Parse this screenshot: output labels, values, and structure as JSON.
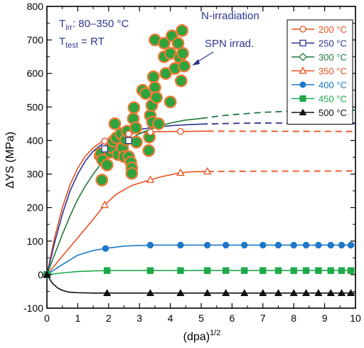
{
  "chart_data": {
    "type": "scatter",
    "xlabel": "(dpa)",
    "xlabel_superscript": "1/2",
    "ylabel": "ΔYS (MPa)",
    "xlim": [
      0,
      10
    ],
    "ylim": [
      -100,
      800
    ],
    "xticks": [
      0,
      1,
      2,
      3,
      4,
      5,
      6,
      7,
      8,
      9,
      10
    ],
    "yticks": [
      -100,
      0,
      100,
      200,
      300,
      400,
      500,
      600,
      700,
      800
    ],
    "grid": false,
    "legend_position": "top-right",
    "annotations": {
      "tirr_prefix": "T",
      "tirr_sub": "irr",
      "tirr_value": ": 80–350 °C",
      "ttest_prefix": "T",
      "ttest_sub": "test",
      "ttest_value": " = RT",
      "n_irradiation": "N-irradiation",
      "spn_label": "SPN irrad."
    },
    "series": [
      {
        "name": "200 °C",
        "color": "#e8501e",
        "marker": "circle-open",
        "points": [
          [
            0,
            0
          ],
          [
            1.87,
            398
          ],
          [
            2.65,
            420
          ],
          [
            3.35,
            425
          ],
          [
            4.33,
            427
          ]
        ],
        "fit": [
          [
            0,
            0
          ],
          [
            0.25,
            110
          ],
          [
            0.5,
            200
          ],
          [
            0.75,
            268
          ],
          [
            1,
            318
          ],
          [
            1.25,
            354
          ],
          [
            1.5,
            378
          ],
          [
            1.75,
            395
          ],
          [
            2,
            405
          ],
          [
            2.25,
            412
          ],
          [
            2.5,
            417
          ],
          [
            2.75,
            420
          ],
          [
            3,
            423
          ],
          [
            3.5,
            426
          ],
          [
            4,
            427
          ],
          [
            4.5,
            427
          ],
          [
            5.2,
            428
          ]
        ],
        "dashed": [
          [
            5.2,
            428
          ],
          [
            10,
            427
          ]
        ]
      },
      {
        "name": "250 °C",
        "color": "#2b3590",
        "marker": "square-open",
        "points": [
          [
            0,
            0
          ],
          [
            1.87,
            375
          ],
          [
            2.65,
            400
          ]
        ],
        "fit": [
          [
            0,
            0
          ],
          [
            0.25,
            95
          ],
          [
            0.5,
            180
          ],
          [
            0.75,
            250
          ],
          [
            1,
            300
          ],
          [
            1.25,
            340
          ],
          [
            1.5,
            368
          ],
          [
            1.75,
            387
          ],
          [
            2,
            402
          ],
          [
            2.25,
            413
          ],
          [
            2.5,
            421
          ],
          [
            2.75,
            428
          ],
          [
            3,
            433
          ],
          [
            3.5,
            440
          ],
          [
            4,
            444
          ],
          [
            4.5,
            447
          ],
          [
            5,
            449
          ]
        ],
        "dashed": [
          [
            5,
            449
          ],
          [
            6,
            451
          ],
          [
            7,
            452
          ],
          [
            8,
            452
          ],
          [
            10,
            452
          ]
        ]
      },
      {
        "name": "300 °C",
        "color": "#1f7a3a",
        "marker": "diamond-open",
        "points": [
          [
            0,
            0
          ]
        ],
        "fit": [
          [
            0,
            0
          ],
          [
            0.25,
            60
          ],
          [
            0.5,
            120
          ],
          [
            0.75,
            175
          ],
          [
            1,
            225
          ],
          [
            1.25,
            265
          ],
          [
            1.5,
            300
          ],
          [
            1.75,
            330
          ],
          [
            2,
            355
          ],
          [
            2.25,
            375
          ],
          [
            2.5,
            393
          ],
          [
            2.75,
            408
          ],
          [
            3,
            420
          ],
          [
            3.25,
            430
          ],
          [
            3.5,
            438
          ],
          [
            3.75,
            446
          ],
          [
            4,
            452
          ],
          [
            4.5,
            461
          ],
          [
            5,
            466
          ]
        ],
        "dashed": [
          [
            5,
            466
          ],
          [
            5.5,
            472
          ],
          [
            6,
            477
          ],
          [
            7,
            484
          ],
          [
            8,
            488
          ],
          [
            9,
            490
          ],
          [
            10,
            491
          ]
        ]
      },
      {
        "name": "350 °C",
        "color": "#e8501e",
        "marker": "triangle-open",
        "points": [
          [
            0,
            0
          ],
          [
            1.87,
            208
          ],
          [
            3.35,
            283
          ],
          [
            4.33,
            304
          ],
          [
            5.2,
            308
          ]
        ],
        "fit": [
          [
            0,
            0
          ],
          [
            0.5,
            55
          ],
          [
            1,
            110
          ],
          [
            1.5,
            165
          ],
          [
            1.87,
            208
          ],
          [
            2.25,
            240
          ],
          [
            2.75,
            266
          ],
          [
            3.35,
            283
          ],
          [
            3.75,
            293
          ],
          [
            4.33,
            304
          ],
          [
            4.75,
            307
          ],
          [
            5.2,
            308
          ]
        ],
        "dashed": [
          [
            5.2,
            308
          ],
          [
            10,
            309
          ]
        ]
      },
      {
        "name": "400 °C",
        "color": "#1f78c8",
        "marker": "circle-filled",
        "points": [
          [
            0,
            0
          ],
          [
            1.9,
            78
          ],
          [
            3.35,
            88
          ],
          [
            4.33,
            88
          ],
          [
            5.2,
            88
          ],
          [
            5.8,
            88
          ],
          [
            6.4,
            88
          ],
          [
            7,
            88
          ],
          [
            7.5,
            88
          ],
          [
            8,
            88
          ],
          [
            8.4,
            88
          ],
          [
            8.8,
            88
          ],
          [
            9.2,
            88
          ],
          [
            9.55,
            88
          ],
          [
            9.85,
            88
          ]
        ],
        "fit": [
          [
            0,
            0
          ],
          [
            0.5,
            30
          ],
          [
            1,
            58
          ],
          [
            1.5,
            72
          ],
          [
            1.9,
            78
          ],
          [
            2.5,
            85
          ],
          [
            3,
            87
          ],
          [
            3.5,
            88
          ],
          [
            10,
            88
          ]
        ]
      },
      {
        "name": "450 °C",
        "color": "#1fa84a",
        "marker": "square-filled",
        "points": [
          [
            0,
            0
          ],
          [
            1.95,
            12
          ],
          [
            3.35,
            12
          ],
          [
            4.33,
            12
          ],
          [
            5.2,
            12
          ],
          [
            5.8,
            12
          ],
          [
            6.4,
            12
          ],
          [
            7,
            12
          ],
          [
            7.5,
            12
          ],
          [
            8,
            12
          ],
          [
            8.4,
            12
          ],
          [
            8.8,
            12
          ],
          [
            9.2,
            12
          ],
          [
            9.55,
            12
          ],
          [
            9.85,
            12
          ]
        ],
        "fit": [
          [
            0,
            0
          ],
          [
            0.5,
            5
          ],
          [
            1,
            9
          ],
          [
            1.5,
            11
          ],
          [
            2,
            12
          ],
          [
            10,
            12
          ]
        ]
      },
      {
        "name": "500 °C",
        "color": "#111111",
        "marker": "triangle-filled",
        "points": [
          [
            0,
            0
          ],
          [
            1.95,
            -55
          ],
          [
            3.35,
            -55
          ],
          [
            4.33,
            -55
          ],
          [
            5.2,
            -55
          ],
          [
            5.8,
            -55
          ],
          [
            6.4,
            -55
          ],
          [
            7,
            -55
          ],
          [
            7.5,
            -55
          ],
          [
            8,
            -55
          ],
          [
            8.4,
            -55
          ],
          [
            8.8,
            -55
          ],
          [
            9.2,
            -55
          ],
          [
            9.55,
            -55
          ],
          [
            9.85,
            -55
          ]
        ],
        "fit": [
          [
            0,
            0
          ],
          [
            0.1,
            -15
          ],
          [
            0.2,
            -28
          ],
          [
            0.35,
            -40
          ],
          [
            0.5,
            -47
          ],
          [
            0.7,
            -52
          ],
          [
            1,
            -54
          ],
          [
            1.5,
            -55
          ],
          [
            10,
            -55
          ]
        ]
      }
    ],
    "spn_points": [
      [
        1.72,
        355
      ],
      [
        1.75,
        362
      ],
      [
        1.8,
        342
      ],
      [
        1.78,
        282
      ],
      [
        1.95,
        327
      ],
      [
        2.05,
        365
      ],
      [
        2.08,
        380
      ],
      [
        2.15,
        398
      ],
      [
        2.2,
        450
      ],
      [
        2.25,
        408
      ],
      [
        2.3,
        358
      ],
      [
        2.4,
        420
      ],
      [
        2.45,
        378
      ],
      [
        2.5,
        352
      ],
      [
        2.55,
        402
      ],
      [
        2.6,
        428
      ],
      [
        2.65,
        352
      ],
      [
        2.72,
        335
      ],
      [
        2.75,
        318
      ],
      [
        2.75,
        302
      ],
      [
        2.8,
        465
      ],
      [
        2.82,
        498
      ],
      [
        2.88,
        438
      ],
      [
        2.9,
        395
      ],
      [
        3.1,
        550
      ],
      [
        3.2,
        540
      ],
      [
        3.3,
        370
      ],
      [
        3.32,
        410
      ],
      [
        3.35,
        475
      ],
      [
        3.4,
        505
      ],
      [
        3.42,
        455
      ],
      [
        3.45,
        590
      ],
      [
        3.5,
        558
      ],
      [
        3.5,
        700
      ],
      [
        3.55,
        528
      ],
      [
        3.62,
        450
      ],
      [
        3.8,
        690
      ],
      [
        3.8,
        650
      ],
      [
        3.85,
        600
      ],
      [
        4.0,
        515
      ],
      [
        4.0,
        660
      ],
      [
        4.05,
        712
      ],
      [
        4.15,
        615
      ],
      [
        4.25,
        690
      ],
      [
        4.3,
        648
      ],
      [
        4.35,
        578
      ],
      [
        4.38,
        728
      ],
      [
        4.4,
        660
      ],
      [
        4.45,
        622
      ]
    ]
  }
}
